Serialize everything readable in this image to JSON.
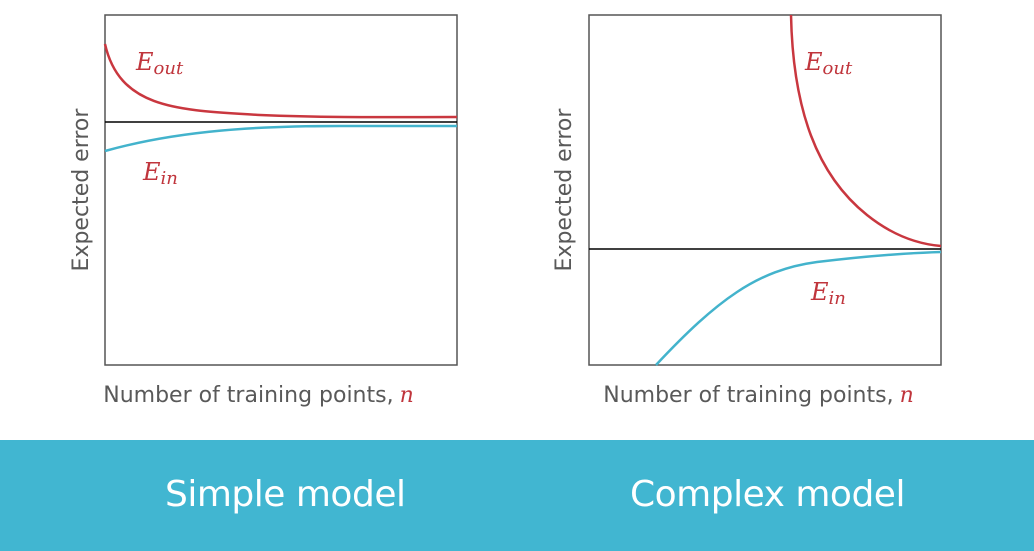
{
  "colors": {
    "eout": "#c9373f",
    "ein": "#43b3cc",
    "asymptote": "#000000",
    "band": "#41b6d1",
    "caption": "#ffffff"
  },
  "panels": [
    {
      "id": "simple",
      "ylabel": "Expected error",
      "xlabel": "Number of training points,",
      "xlabel_var": "n",
      "eout_label": {
        "main": "E",
        "sub": "out"
      },
      "ein_label": {
        "main": "E",
        "sub": "in"
      },
      "caption": "Simple model"
    },
    {
      "id": "complex",
      "ylabel": "Expected error",
      "xlabel": "Number of training points,",
      "xlabel_var": "n",
      "eout_label": {
        "main": "E",
        "sub": "out"
      },
      "ein_label": {
        "main": "E",
        "sub": "in"
      },
      "caption": "Complex model"
    }
  ]
}
